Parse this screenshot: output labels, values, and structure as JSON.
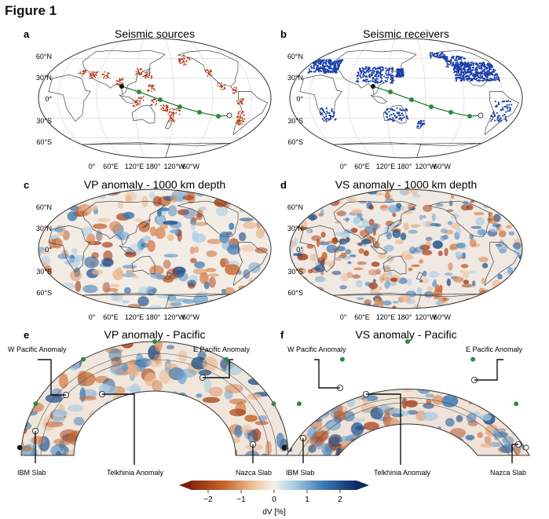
{
  "figure_title": "Figure 1",
  "panels": {
    "a": {
      "letter": "a",
      "title": "Seismic sources"
    },
    "b": {
      "letter": "b",
      "title": "Seismic receivers"
    },
    "c": {
      "letter": "c",
      "title": "VP anomaly - 1000 km depth"
    },
    "d": {
      "letter": "d",
      "title": "VS anomaly - 1000 km depth"
    },
    "e": {
      "letter": "e",
      "title": "VP anomaly - Pacific"
    },
    "f": {
      "letter": "f",
      "title": "VS anomaly - Pacific"
    }
  },
  "lat_labels": [
    "60°N",
    "30°N",
    "0°",
    "30°S",
    "60°S"
  ],
  "lon_labels": [
    "0°",
    "60°E",
    "120°E",
    "180°",
    "120°W",
    "60°W"
  ],
  "annotations": {
    "w_pacific": "W Pacific Anomaly",
    "e_pacific": "E Pacific Anomaly",
    "ibm_slab": "IBM Slab",
    "telkhinia": "Telkhinia Anomaly",
    "nazca_slab": "Nazca Slab"
  },
  "colorbar": {
    "label": "dV [%]",
    "ticks": [
      "−2",
      "−1",
      "0",
      "1",
      "2"
    ],
    "range": [
      -2.5,
      2.5
    ],
    "colors": [
      "#67001f",
      "#b2541b",
      "#e8a878",
      "#f7f7f7",
      "#90c2dd",
      "#2c6aa8",
      "#0b1f55"
    ]
  },
  "colors": {
    "sources": "#b83a1a",
    "receivers": "#1a3fa8",
    "path": "#2e7d32",
    "path_marker": "#2e8b3d"
  }
}
